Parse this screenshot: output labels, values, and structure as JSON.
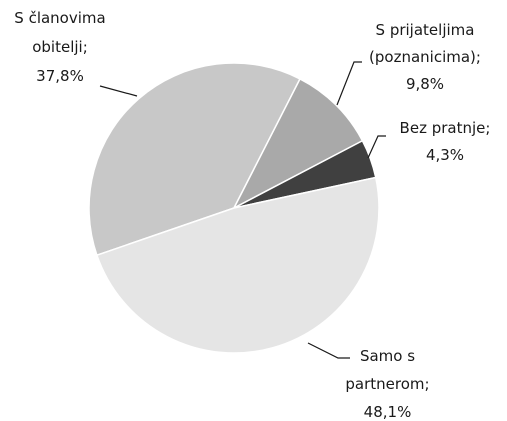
{
  "chart_data": {
    "type": "pie",
    "categories": [
      "S članovima obitelji;",
      "S prijateljima (poznanicima);",
      "Bez pratnje;",
      "Samo s partnerom;"
    ],
    "values": [
      37.8,
      9.8,
      4.3,
      48.1
    ],
    "value_labels": [
      "37,8%",
      "9,8%",
      "4,3%",
      "48,1%"
    ],
    "colors": [
      "#c8c8c8",
      "#a9a9a9",
      "#404040",
      "#e5e5e5"
    ]
  }
}
